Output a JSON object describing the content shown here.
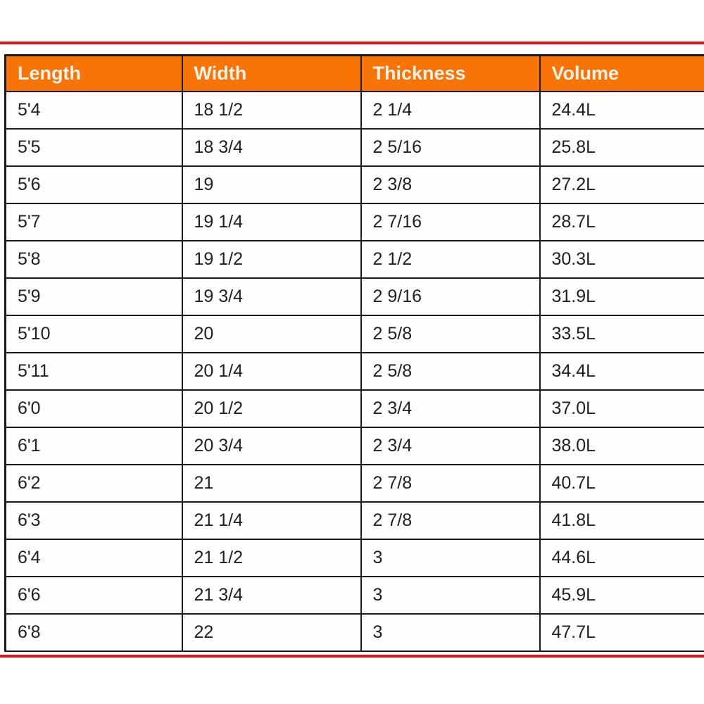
{
  "colors": {
    "page_bg": "#FFFFFF",
    "header_bg": "#F97406",
    "header_text": "#FBF3E9",
    "grid_border": "#1B1B1B",
    "cell_text": "#212121",
    "accent_line": "#E11319"
  },
  "table": {
    "columns": [
      "Length",
      "Width",
      "Thickness",
      "Volume"
    ],
    "rows": [
      [
        "5'4",
        "18 1/2",
        "2 1/4",
        "24.4L"
      ],
      [
        "5'5",
        "18 3/4",
        "2 5/16",
        "25.8L"
      ],
      [
        "5'6",
        "19",
        "2 3/8",
        "27.2L"
      ],
      [
        "5'7",
        "19 1/4",
        "2 7/16",
        "28.7L"
      ],
      [
        "5'8",
        "19 1/2",
        "2 1/2",
        "30.3L"
      ],
      [
        "5'9",
        "19 3/4",
        "2 9/16",
        "31.9L"
      ],
      [
        "5'10",
        "20",
        "2 5/8",
        "33.5L"
      ],
      [
        "5'11",
        "20 1/4",
        "2 5/8",
        "34.4L"
      ],
      [
        "6'0",
        "20 1/2",
        "2 3/4",
        "37.0L"
      ],
      [
        "6'1",
        "20 3/4",
        "2 3/4",
        "38.0L"
      ],
      [
        "6'2",
        "21",
        "2 7/8",
        "40.7L"
      ],
      [
        "6'3",
        "21 1/4",
        "2 7/8",
        "41.8L"
      ],
      [
        "6'4",
        "21 1/2",
        "3",
        "44.6L"
      ],
      [
        "6'6",
        "21 3/4",
        "3",
        "45.9L"
      ],
      [
        "6'8",
        "22",
        "3",
        "47.7L"
      ]
    ]
  },
  "chart_data": {
    "type": "table",
    "columns": [
      "Length",
      "Width",
      "Thickness",
      "Volume"
    ],
    "rows": [
      [
        "5'4",
        "18 1/2",
        "2 1/4",
        "24.4L"
      ],
      [
        "5'5",
        "18 3/4",
        "2 5/16",
        "25.8L"
      ],
      [
        "5'6",
        "19",
        "2 3/8",
        "27.2L"
      ],
      [
        "5'7",
        "19 1/4",
        "2 7/16",
        "28.7L"
      ],
      [
        "5'8",
        "19 1/2",
        "2 1/2",
        "30.3L"
      ],
      [
        "5'9",
        "19 3/4",
        "2 9/16",
        "31.9L"
      ],
      [
        "5'10",
        "20",
        "2 5/8",
        "33.5L"
      ],
      [
        "5'11",
        "20 1/4",
        "2 5/8",
        "34.4L"
      ],
      [
        "6'0",
        "20 1/2",
        "2 3/4",
        "37.0L"
      ],
      [
        "6'1",
        "20 3/4",
        "2 3/4",
        "38.0L"
      ],
      [
        "6'2",
        "21",
        "2 7/8",
        "40.7L"
      ],
      [
        "6'3",
        "21 1/4",
        "2 7/8",
        "41.8L"
      ],
      [
        "6'4",
        "21 1/2",
        "3",
        "44.6L"
      ],
      [
        "6'6",
        "21 3/4",
        "3",
        "45.9L"
      ],
      [
        "6'8",
        "22",
        "3",
        "47.7L"
      ]
    ],
    "layout": {
      "header_fill": "#F97406",
      "header_text_color": "#FBF3E9",
      "grid": true,
      "accent_rule_top": true,
      "accent_rule_bottom": true
    }
  }
}
